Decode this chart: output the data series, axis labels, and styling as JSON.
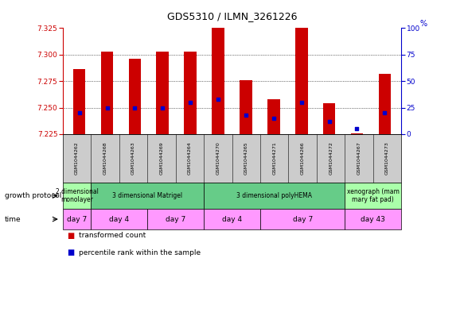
{
  "title": "GDS5310 / ILMN_3261226",
  "samples": [
    "GSM1044262",
    "GSM1044268",
    "GSM1044263",
    "GSM1044269",
    "GSM1044264",
    "GSM1044270",
    "GSM1044265",
    "GSM1044271",
    "GSM1044266",
    "GSM1044272",
    "GSM1044267",
    "GSM1044273"
  ],
  "transformed_count": [
    7.286,
    7.303,
    7.296,
    7.303,
    7.303,
    7.325,
    7.276,
    7.258,
    7.325,
    7.254,
    7.226,
    7.282
  ],
  "percentile_rank": [
    20,
    25,
    25,
    25,
    30,
    33,
    18,
    15,
    30,
    12,
    5,
    20
  ],
  "ylim_left": [
    7.225,
    7.325
  ],
  "ylim_right": [
    0,
    100
  ],
  "yticks_left": [
    7.225,
    7.25,
    7.275,
    7.3,
    7.325
  ],
  "yticks_right": [
    0,
    25,
    50,
    75,
    100
  ],
  "bar_color": "#cc0000",
  "dot_color": "#0000cc",
  "bar_bottom": 7.225,
  "growth_protocol_groups": [
    {
      "label": "2 dimensional\nmonolayer",
      "start": 0,
      "end": 1,
      "color": "#aaffaa"
    },
    {
      "label": "3 dimensional Matrigel",
      "start": 1,
      "end": 5,
      "color": "#66cc88"
    },
    {
      "label": "3 dimensional polyHEMA",
      "start": 5,
      "end": 10,
      "color": "#66cc88"
    },
    {
      "label": "xenograph (mam\nmary fat pad)",
      "start": 10,
      "end": 12,
      "color": "#aaffaa"
    }
  ],
  "time_groups": [
    {
      "label": "day 7",
      "start": 0,
      "end": 1
    },
    {
      "label": "day 4",
      "start": 1,
      "end": 3
    },
    {
      "label": "day 7",
      "start": 3,
      "end": 5
    },
    {
      "label": "day 4",
      "start": 5,
      "end": 7
    },
    {
      "label": "day 7",
      "start": 7,
      "end": 10
    },
    {
      "label": "day 43",
      "start": 10,
      "end": 12
    }
  ],
  "time_color": "#ff99ff",
  "sample_box_color": "#cccccc",
  "left_label_color": "#cc0000",
  "right_label_color": "#0000cc",
  "legend_items": [
    {
      "label": "transformed count",
      "color": "#cc0000"
    },
    {
      "label": "percentile rank within the sample",
      "color": "#0000cc"
    }
  ]
}
